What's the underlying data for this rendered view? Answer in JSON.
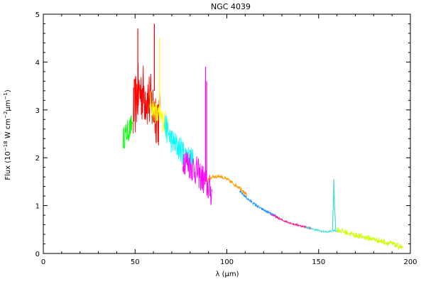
{
  "chart_data": {
    "type": "line",
    "title": "NGC 4039",
    "xlabel": "λ (μm)",
    "ylabel_parts": {
      "prefix": "Flux (10",
      "exp1": "−18",
      "mid": " W cm",
      "exp2": "−2",
      "mid2": "μm",
      "exp3": "−1",
      "suffix": ")"
    },
    "xlim": [
      0,
      200
    ],
    "ylim": [
      0,
      5
    ],
    "xticks": [
      0,
      50,
      100,
      150,
      200
    ],
    "xtick_labels": [
      "0",
      "50",
      "100",
      "150",
      "200"
    ],
    "yticks": [
      0,
      1,
      2,
      3,
      4,
      5
    ],
    "ytick_labels": [
      "0",
      "1",
      "2",
      "3",
      "4",
      "5"
    ],
    "grid": false,
    "series": [
      {
        "color": "#00ff00",
        "noise": 0.25,
        "points": [
          [
            43.5,
            2.4
          ],
          [
            45,
            2.5
          ],
          [
            47,
            2.6
          ],
          [
            48.5,
            2.7
          ]
        ]
      },
      {
        "color": "#ff0000",
        "noise": 0.65,
        "points": [
          [
            49,
            2.9
          ],
          [
            51,
            3.3
          ],
          [
            53,
            3.4
          ],
          [
            56,
            3.3
          ],
          [
            59,
            3.1
          ],
          [
            62,
            2.9
          ],
          [
            63.5,
            2.8
          ]
        ]
      },
      {
        "color": "#ffff00",
        "noise": 0.25,
        "points": [
          [
            58,
            3.2
          ],
          [
            60,
            3.0
          ],
          [
            62,
            2.9
          ],
          [
            64,
            2.85
          ],
          [
            66,
            2.75
          ],
          [
            68,
            2.7
          ]
        ]
      },
      {
        "color": "#00ffff",
        "noise": 0.28,
        "points": [
          [
            66,
            2.7
          ],
          [
            70,
            2.35
          ],
          [
            74,
            2.2
          ],
          [
            78,
            2.05
          ],
          [
            82,
            1.9
          ]
        ]
      },
      {
        "color": "#ff00ff",
        "noise": 0.32,
        "points": [
          [
            76,
            2.0
          ],
          [
            80,
            1.85
          ],
          [
            84,
            1.7
          ],
          [
            88,
            1.5
          ],
          [
            92,
            1.25
          ]
        ]
      },
      {
        "color": "#ff9900",
        "noise": 0.04,
        "points": [
          [
            88,
            1.5
          ],
          [
            92,
            1.6
          ],
          [
            96,
            1.62
          ],
          [
            100,
            1.55
          ],
          [
            104,
            1.45
          ],
          [
            108,
            1.35
          ],
          [
            111,
            1.2
          ]
        ]
      },
      {
        "color": "#1e90ff",
        "noise": 0.03,
        "points": [
          [
            107,
            1.3
          ],
          [
            112,
            1.12
          ],
          [
            118,
            0.95
          ],
          [
            124,
            0.83
          ],
          [
            128,
            0.75
          ]
        ]
      },
      {
        "color": "#ff1493",
        "noise": 0.02,
        "points": [
          [
            124,
            0.82
          ],
          [
            130,
            0.7
          ],
          [
            136,
            0.62
          ],
          [
            142,
            0.56
          ],
          [
            146,
            0.52
          ]
        ]
      },
      {
        "color": "#40e0d0",
        "noise": 0.02,
        "points": [
          [
            143,
            0.55
          ],
          [
            148,
            0.5
          ],
          [
            152,
            0.46
          ],
          [
            155,
            0.45
          ],
          [
            158,
            0.48
          ],
          [
            161,
            0.47
          ]
        ]
      },
      {
        "color": "#ccff00",
        "noise": 0.06,
        "points": [
          [
            160,
            0.5
          ],
          [
            170,
            0.38
          ],
          [
            180,
            0.3
          ],
          [
            190,
            0.2
          ],
          [
            196,
            0.12
          ]
        ]
      }
    ],
    "lines": [
      {
        "color": "#ff0000",
        "points": [
          [
            51.5,
            2.9
          ],
          [
            51.5,
            4.7
          ]
        ]
      },
      {
        "color": "#ff0000",
        "points": [
          [
            60.5,
            3.4
          ],
          [
            60.5,
            4.8
          ]
        ]
      },
      {
        "color": "#ffff00",
        "points": [
          [
            63.2,
            2.9
          ],
          [
            63.2,
            4.5
          ]
        ]
      },
      {
        "color": "#ff00ff",
        "points": [
          [
            88.4,
            1.5
          ],
          [
            88.4,
            3.9
          ]
        ]
      },
      {
        "color": "#ff00ff",
        "points": [
          [
            89.0,
            1.5
          ],
          [
            89.0,
            3.6
          ]
        ]
      },
      {
        "color": "#40e0d0",
        "points": [
          [
            157.5,
            0.48
          ],
          [
            158.0,
            1.0
          ],
          [
            158.3,
            1.55
          ],
          [
            158.6,
            1.1
          ],
          [
            159.3,
            0.5
          ]
        ]
      }
    ]
  }
}
